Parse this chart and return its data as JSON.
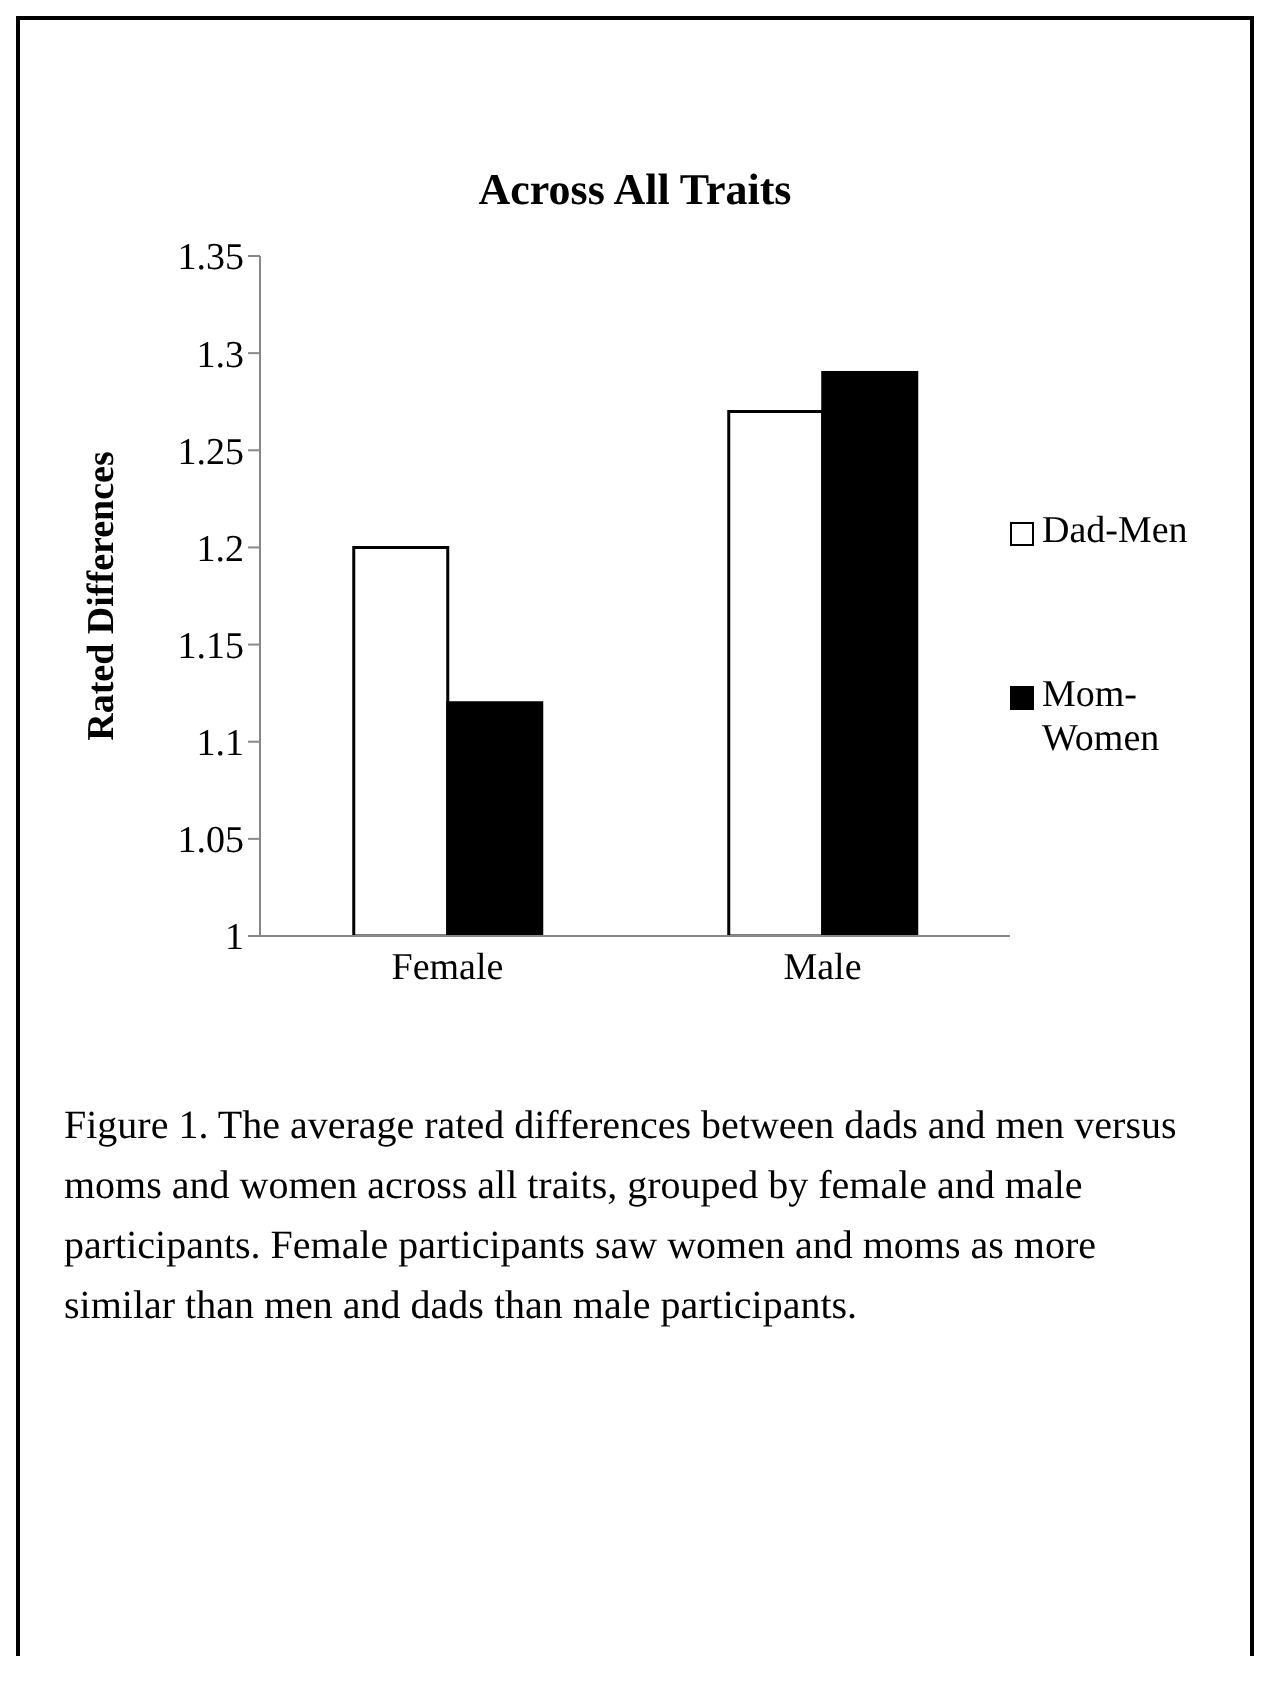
{
  "chart_data": {
    "type": "bar",
    "title": "Across All Traits",
    "ylabel": "Rated Differences",
    "categories": [
      "Female",
      "Male"
    ],
    "series": [
      {
        "name": "Dad-Men",
        "color": "#ffffff",
        "values": [
          1.2,
          1.27
        ]
      },
      {
        "name": "Mom-Women",
        "color": "#000000",
        "values": [
          1.12,
          1.29
        ]
      }
    ],
    "ylim": [
      1,
      1.35
    ],
    "yticks": [
      1,
      1.05,
      1.1,
      1.15,
      1.2,
      1.25,
      1.3,
      1.35
    ],
    "grid": false,
    "legend": "right",
    "annotations": [
      "Figure 1. The average rated differences between dads and men versus moms and women across all traits, grouped by female and male participants. Female participants saw women and moms as more similar than men and dads than male participants."
    ]
  }
}
